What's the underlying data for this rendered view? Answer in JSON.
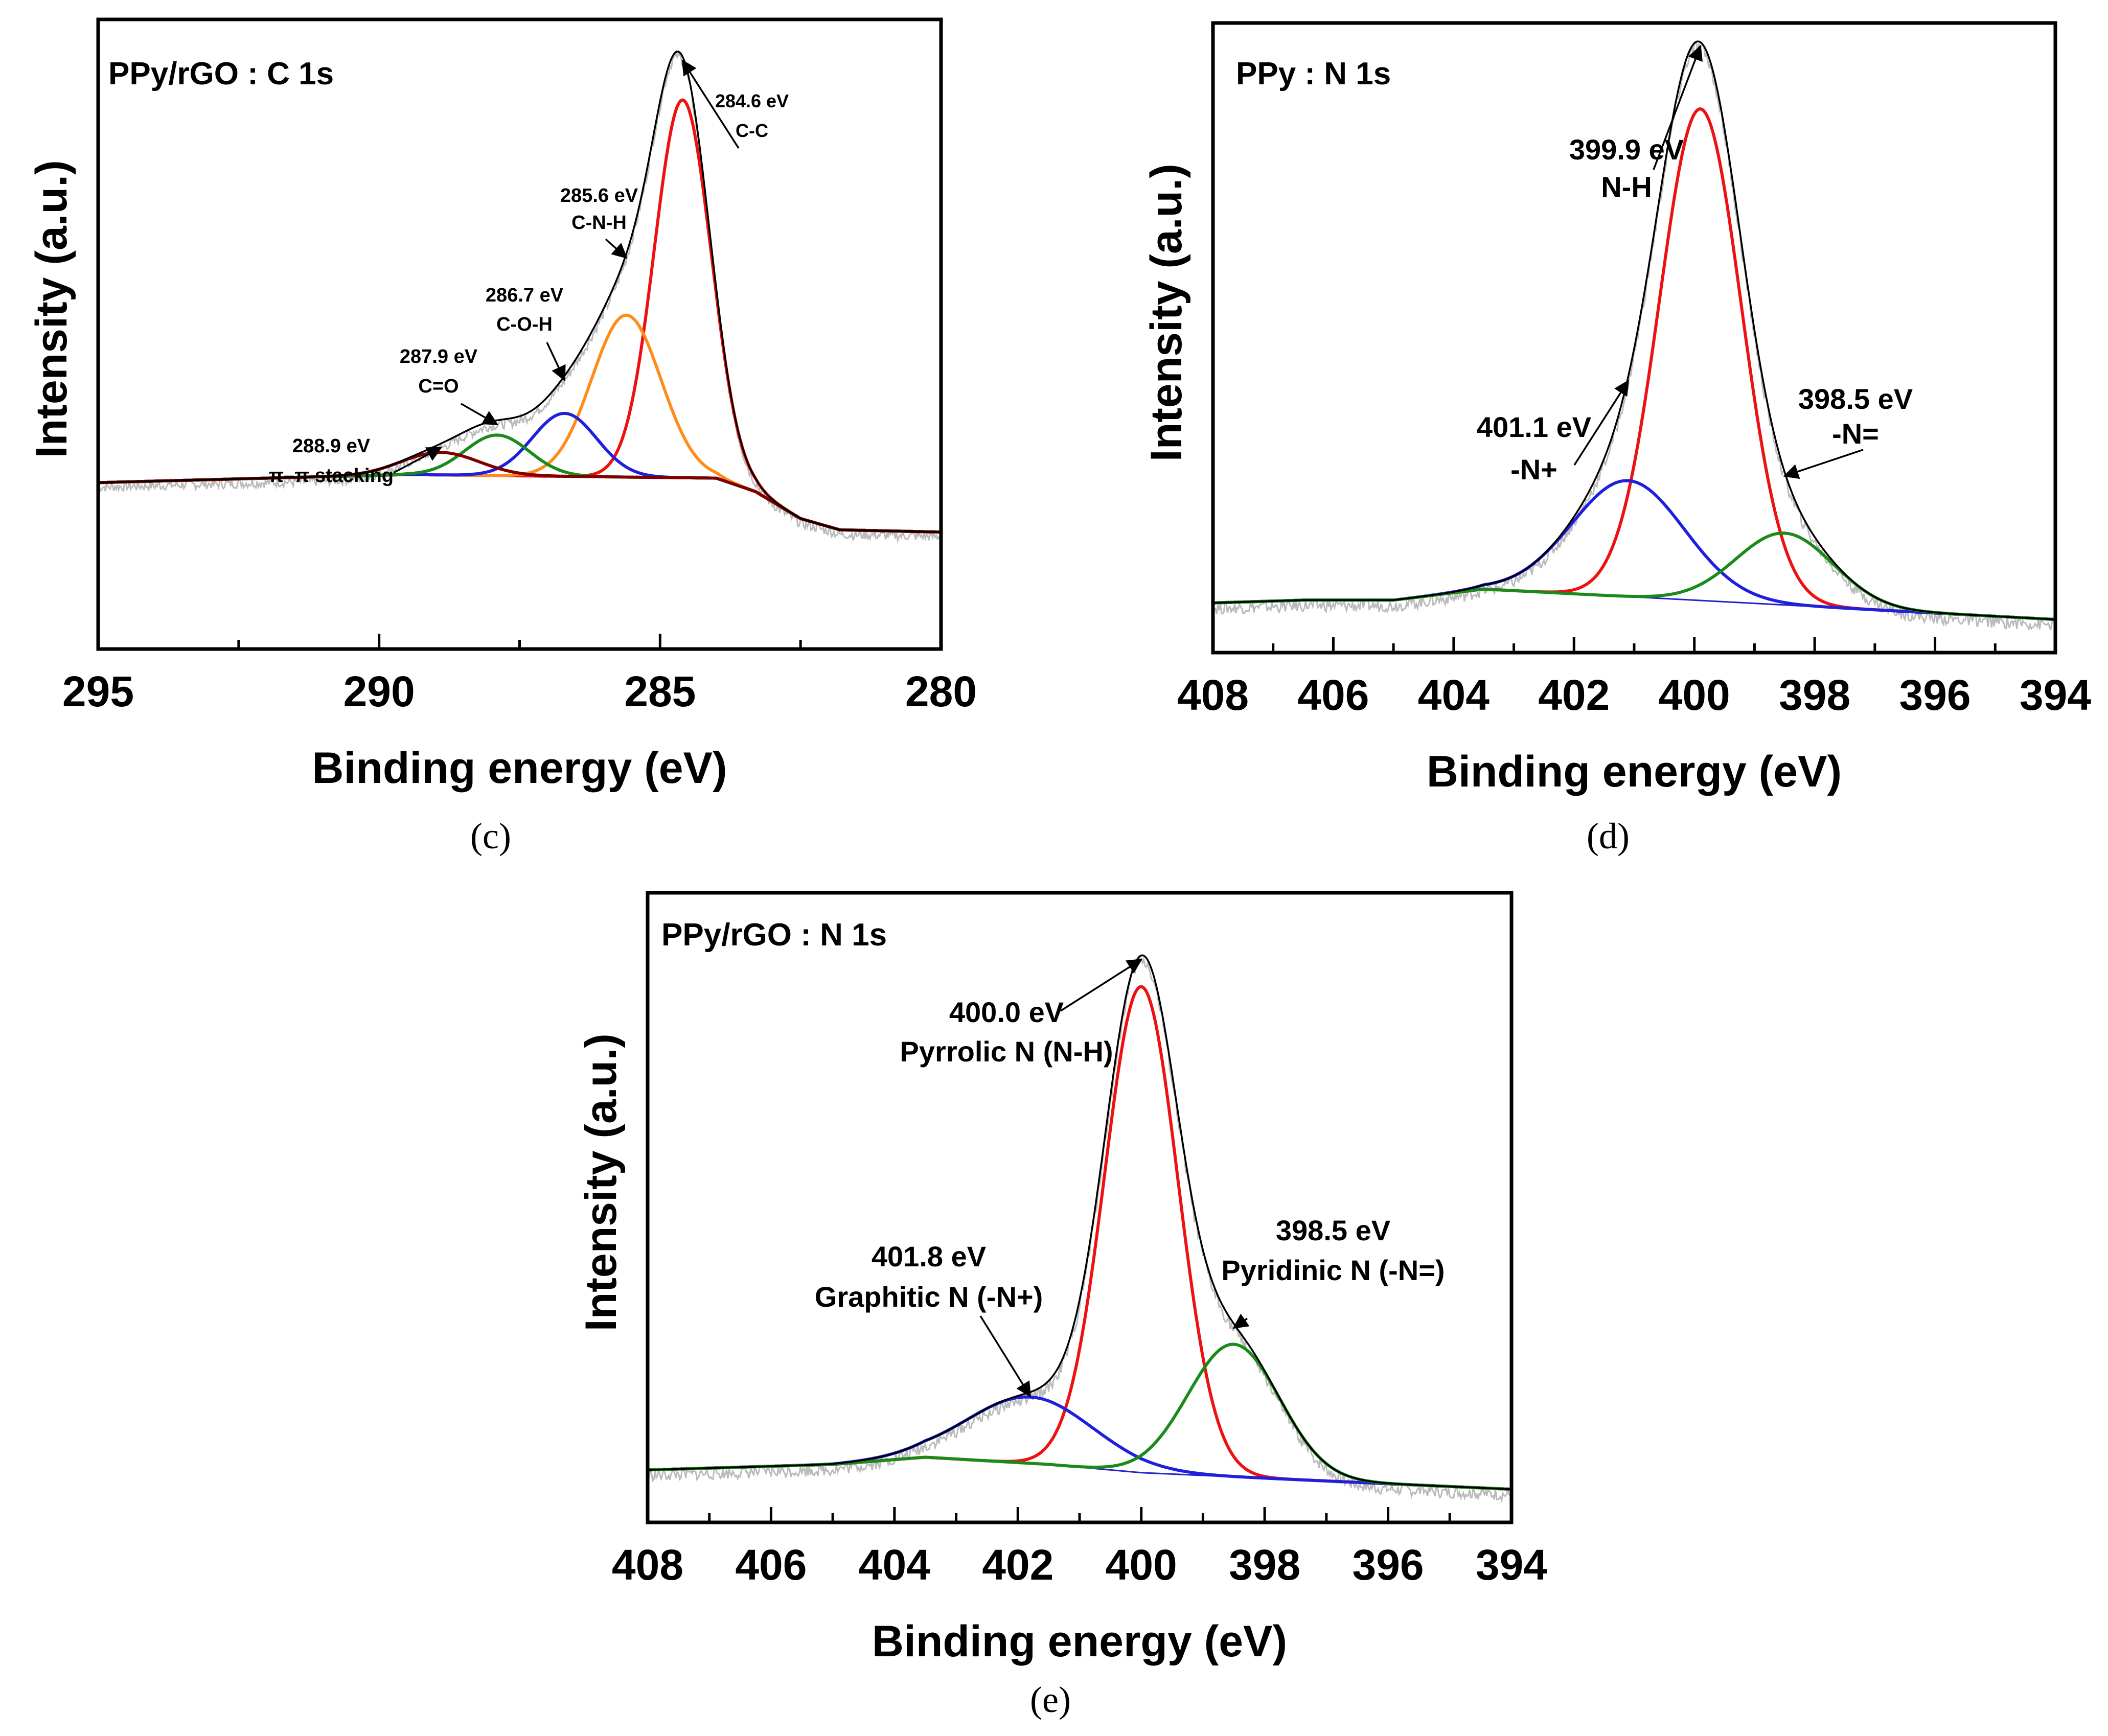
{
  "chart_data": [
    {
      "id": "c",
      "type": "line",
      "caption": "(c)",
      "title": "PPy/rGO : C 1s",
      "xlabel": "Binding energy (eV)",
      "ylabel": "Intensity (a.u.)",
      "xlim": [
        295,
        280
      ],
      "x_reversed": true,
      "xticks": [
        295,
        290,
        285,
        280
      ],
      "ylim": [
        -0.35,
        1.05
      ],
      "y_ticks_shown": false,
      "grid": false,
      "colors": {
        "envelope": "#000000",
        "raw": "#bbbbbb",
        "baseline": "#880088"
      },
      "baseline": {
        "points": [
          [
            295,
            0.02
          ],
          [
            292,
            0.03
          ],
          [
            289.5,
            0.038
          ],
          [
            284,
            0.03
          ],
          [
            283.3,
            0.0
          ],
          [
            282.5,
            -0.06
          ],
          [
            281.8,
            -0.085
          ],
          [
            280,
            -0.09
          ]
        ]
      },
      "peaks": [
        {
          "center": 284.6,
          "height": 0.84,
          "fwhm": 1.18,
          "color": "#ee1111",
          "label_energy": "284.6 eV",
          "label_group": "C-C"
        },
        {
          "center": 285.6,
          "height": 0.36,
          "fwhm": 1.45,
          "color": "#ff8c1a",
          "label_energy": "285.6 eV",
          "label_group": "C-N-H"
        },
        {
          "center": 286.7,
          "height": 0.14,
          "fwhm": 1.35,
          "color": "#1f1fdd",
          "label_energy": "286.7 eV",
          "label_group": "C-O-H"
        },
        {
          "center": 287.9,
          "height": 0.09,
          "fwhm": 1.35,
          "color": "#1a8a1a",
          "label_energy": "287.9 eV",
          "label_group": "C=O"
        },
        {
          "center": 288.9,
          "height": 0.05,
          "fwhm": 1.6,
          "color": "#800000",
          "label_energy": "288.9 eV",
          "label_group": "π–π stacking"
        }
      ]
    },
    {
      "id": "d",
      "type": "line",
      "caption": "(d)",
      "title": "PPy : N 1s",
      "xlabel": "Binding energy (eV)",
      "ylabel": "Intensity (a.u.)",
      "xlim": [
        408,
        394
      ],
      "x_reversed": true,
      "xticks": [
        408,
        406,
        404,
        402,
        400,
        398,
        396,
        394
      ],
      "ylim": [
        -0.06,
        1.08
      ],
      "y_ticks_shown": false,
      "grid": false,
      "colors": {
        "envelope": "#000000",
        "raw": "#bbbbbb",
        "baseline": "#2222cc"
      },
      "baseline": {
        "points": [
          [
            408,
            0.03
          ],
          [
            406.5,
            0.035
          ],
          [
            405,
            0.035
          ],
          [
            403.5,
            0.055
          ],
          [
            400,
            0.035
          ],
          [
            394,
            0.0
          ]
        ]
      },
      "peaks": [
        {
          "center": 399.9,
          "height": 0.89,
          "fwhm": 1.6,
          "color": "#ee1111",
          "label_energy": "399.9 eV",
          "label_group": "N-H"
        },
        {
          "center": 401.1,
          "height": 0.21,
          "fwhm": 2.2,
          "color": "#1f1fdd",
          "label_energy": "401.1 eV",
          "label_group": "-N+"
        },
        {
          "center": 398.5,
          "height": 0.13,
          "fwhm": 1.9,
          "color": "#1a8a1a",
          "label_energy": "398.5 eV",
          "label_group": "-N="
        }
      ]
    },
    {
      "id": "e",
      "type": "line",
      "caption": "(e)",
      "title": "PPy/rGO : N 1s",
      "xlabel": "Binding energy (eV)",
      "ylabel": "Intensity (a.u.)",
      "xlim": [
        408,
        394
      ],
      "x_reversed": true,
      "xticks": [
        408,
        406,
        404,
        402,
        400,
        398,
        396,
        394
      ],
      "ylim": [
        -0.06,
        1.08
      ],
      "y_ticks_shown": false,
      "grid": false,
      "colors": {
        "envelope": "#000000",
        "raw": "#bbbbbb",
        "baseline": "#2222cc"
      },
      "baseline": {
        "points": [
          [
            408,
            0.035
          ],
          [
            405,
            0.045
          ],
          [
            403.5,
            0.058
          ],
          [
            401.5,
            0.045
          ],
          [
            400,
            0.03
          ],
          [
            394,
            0.0
          ]
        ]
      },
      "peaks": [
        {
          "center": 400.0,
          "height": 0.88,
          "fwhm": 1.4,
          "color": "#ee1111",
          "label_energy": "400.0 eV",
          "label_group": "Pyrrolic N (N-H)"
        },
        {
          "center": 401.8,
          "height": 0.12,
          "fwhm": 2.4,
          "color": "#1f1fdd",
          "label_energy": "401.8 eV",
          "label_group": "Graphitic N (-N+)"
        },
        {
          "center": 398.5,
          "height": 0.24,
          "fwhm": 1.75,
          "color": "#1a8a1a",
          "label_energy": "398.5 eV",
          "label_group": "Pyridinic N (-N=)"
        }
      ]
    }
  ]
}
